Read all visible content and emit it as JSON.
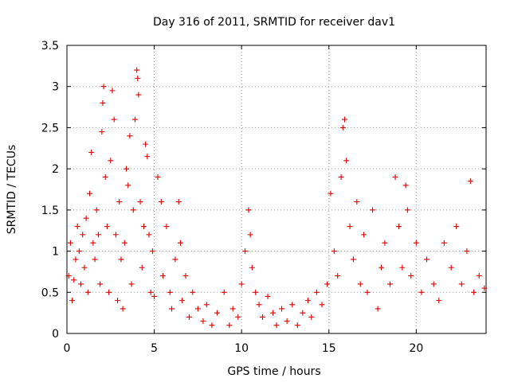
{
  "chart_data": {
    "type": "scatter",
    "title": "Day 316 of 2011, SRMTID for receiver dav1",
    "xlabel": "GPS time / hours",
    "ylabel": "SRMTID / TECUs",
    "xlim": [
      0,
      24
    ],
    "ylim": [
      0,
      3.5
    ],
    "xticks": [
      0,
      5,
      10,
      15,
      20
    ],
    "xtick_labels": [
      "0",
      "5",
      "10",
      "15",
      "20"
    ],
    "yticks": [
      0,
      0.5,
      1,
      1.5,
      2,
      2.5,
      3,
      3.5
    ],
    "ytick_labels": [
      "0",
      "0.5",
      "1",
      "1.5",
      "2",
      "2.5",
      "3",
      "3.5"
    ],
    "grid": true,
    "marker": "+",
    "color": "#e00000",
    "series": [
      {
        "name": "SRMTID",
        "points": [
          [
            0.1,
            0.7
          ],
          [
            0.2,
            1.1
          ],
          [
            0.3,
            0.4
          ],
          [
            0.4,
            0.65
          ],
          [
            0.5,
            0.9
          ],
          [
            0.6,
            1.3
          ],
          [
            0.7,
            1.0
          ],
          [
            0.8,
            0.6
          ],
          [
            0.9,
            1.2
          ],
          [
            1.0,
            0.8
          ],
          [
            1.1,
            1.4
          ],
          [
            1.2,
            0.5
          ],
          [
            1.3,
            1.7
          ],
          [
            1.4,
            2.2
          ],
          [
            1.5,
            1.1
          ],
          [
            1.6,
            0.9
          ],
          [
            1.7,
            1.5
          ],
          [
            1.8,
            1.2
          ],
          [
            1.9,
            0.6
          ],
          [
            2.0,
            2.45
          ],
          [
            2.05,
            2.8
          ],
          [
            2.1,
            3.0
          ],
          [
            2.2,
            1.9
          ],
          [
            2.3,
            1.3
          ],
          [
            2.4,
            0.5
          ],
          [
            2.5,
            2.1
          ],
          [
            2.6,
            2.95
          ],
          [
            2.7,
            2.6
          ],
          [
            2.8,
            1.2
          ],
          [
            2.9,
            0.4
          ],
          [
            3.0,
            1.6
          ],
          [
            3.1,
            0.9
          ],
          [
            3.2,
            0.3
          ],
          [
            3.3,
            1.1
          ],
          [
            3.4,
            2.0
          ],
          [
            3.5,
            1.8
          ],
          [
            3.6,
            2.4
          ],
          [
            3.7,
            0.6
          ],
          [
            3.8,
            1.5
          ],
          [
            3.9,
            2.6
          ],
          [
            4.0,
            3.2
          ],
          [
            4.05,
            3.1
          ],
          [
            4.1,
            2.9
          ],
          [
            4.2,
            1.6
          ],
          [
            4.3,
            0.8
          ],
          [
            4.4,
            1.3
          ],
          [
            4.5,
            2.3
          ],
          [
            4.6,
            2.15
          ],
          [
            4.7,
            1.2
          ],
          [
            4.8,
            0.5
          ],
          [
            4.9,
            1.0
          ],
          [
            5.0,
            0.45
          ],
          [
            5.2,
            1.9
          ],
          [
            5.4,
            1.6
          ],
          [
            5.5,
            0.7
          ],
          [
            5.7,
            1.3
          ],
          [
            5.9,
            0.5
          ],
          [
            6.0,
            0.3
          ],
          [
            6.2,
            0.9
          ],
          [
            6.4,
            1.6
          ],
          [
            6.5,
            1.1
          ],
          [
            6.6,
            0.4
          ],
          [
            6.8,
            0.7
          ],
          [
            7.0,
            0.2
          ],
          [
            7.2,
            0.5
          ],
          [
            7.5,
            0.3
          ],
          [
            7.8,
            0.15
          ],
          [
            8.0,
            0.35
          ],
          [
            8.3,
            0.1
          ],
          [
            8.6,
            0.25
          ],
          [
            9.0,
            0.5
          ],
          [
            9.3,
            0.1
          ],
          [
            9.5,
            0.3
          ],
          [
            9.8,
            0.2
          ],
          [
            10.0,
            0.6
          ],
          [
            10.2,
            1.0
          ],
          [
            10.4,
            1.5
          ],
          [
            10.5,
            1.2
          ],
          [
            10.6,
            0.8
          ],
          [
            10.8,
            0.5
          ],
          [
            11.0,
            0.35
          ],
          [
            11.2,
            0.2
          ],
          [
            11.5,
            0.45
          ],
          [
            11.8,
            0.25
          ],
          [
            12.0,
            0.1
          ],
          [
            12.3,
            0.3
          ],
          [
            12.6,
            0.15
          ],
          [
            12.9,
            0.35
          ],
          [
            13.2,
            0.1
          ],
          [
            13.5,
            0.25
          ],
          [
            13.8,
            0.4
          ],
          [
            14.0,
            0.2
          ],
          [
            14.3,
            0.5
          ],
          [
            14.6,
            0.35
          ],
          [
            14.9,
            0.6
          ],
          [
            15.1,
            1.7
          ],
          [
            15.3,
            1.0
          ],
          [
            15.5,
            0.7
          ],
          [
            15.7,
            1.9
          ],
          [
            15.8,
            2.5
          ],
          [
            15.9,
            2.6
          ],
          [
            16.0,
            2.1
          ],
          [
            16.2,
            1.3
          ],
          [
            16.4,
            0.9
          ],
          [
            16.6,
            1.6
          ],
          [
            16.8,
            0.6
          ],
          [
            17.0,
            1.2
          ],
          [
            17.2,
            0.5
          ],
          [
            17.5,
            1.5
          ],
          [
            17.8,
            0.3
          ],
          [
            18.0,
            0.8
          ],
          [
            18.2,
            1.1
          ],
          [
            18.5,
            0.6
          ],
          [
            18.8,
            1.9
          ],
          [
            19.0,
            1.3
          ],
          [
            19.2,
            0.8
          ],
          [
            19.4,
            1.8
          ],
          [
            19.5,
            1.5
          ],
          [
            19.7,
            0.7
          ],
          [
            20.0,
            1.1
          ],
          [
            20.3,
            0.5
          ],
          [
            20.6,
            0.9
          ],
          [
            21.0,
            0.6
          ],
          [
            21.3,
            0.4
          ],
          [
            21.6,
            1.1
          ],
          [
            22.0,
            0.8
          ],
          [
            22.3,
            1.3
          ],
          [
            22.6,
            0.6
          ],
          [
            22.9,
            1.0
          ],
          [
            23.1,
            1.85
          ],
          [
            23.3,
            0.5
          ],
          [
            23.6,
            0.7
          ],
          [
            23.9,
            0.55
          ]
        ]
      }
    ]
  }
}
